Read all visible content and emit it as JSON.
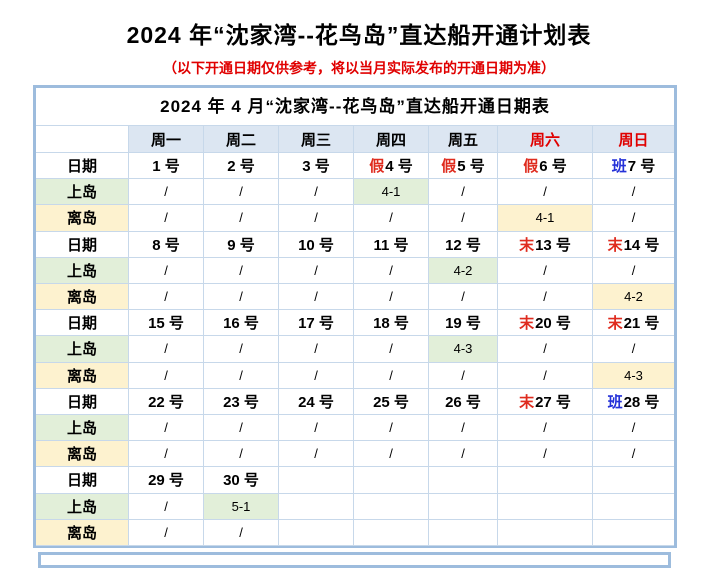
{
  "page": {
    "title": "2024 年“沈家湾--花鸟岛”直达船开通计划表",
    "subtitle": "（以下开通日期仅供参考，将以当月实际发布的开通日期为准）"
  },
  "colors": {
    "border_blue": "#9dbcdd",
    "grid_line": "#c7d8ea",
    "header_row_bg": "#dce6f2",
    "label_green": "#e2efd9",
    "label_yellow": "#fdf2cf",
    "weekend_red": "#e00000",
    "marker_red": "#df2b1e",
    "marker_blue": "#2431d8"
  },
  "table": {
    "title": "2024 年 4 月“沈家湾--花鸟岛”直达船开通日期表",
    "corner_label": "",
    "weekday_headers": [
      {
        "label": "周一",
        "red": false
      },
      {
        "label": "周二",
        "red": false
      },
      {
        "label": "周三",
        "red": false
      },
      {
        "label": "周四",
        "red": false
      },
      {
        "label": "周五",
        "red": false
      },
      {
        "label": "周六",
        "red": true
      },
      {
        "label": "周日",
        "red": true
      }
    ],
    "row_labels": {
      "date": "日期",
      "to_island": "上岛",
      "leave_island": "离岛"
    },
    "weeks": [
      {
        "dates": [
          {
            "prefix": "",
            "prefix_color": "",
            "text": "1 号"
          },
          {
            "prefix": "",
            "prefix_color": "",
            "text": "2 号"
          },
          {
            "prefix": "",
            "prefix_color": "",
            "text": "3 号"
          },
          {
            "prefix": "假",
            "prefix_color": "red",
            "text": "4 号"
          },
          {
            "prefix": "假",
            "prefix_color": "red",
            "text": "5 号"
          },
          {
            "prefix": "假",
            "prefix_color": "red",
            "text": "6 号"
          },
          {
            "prefix": "班",
            "prefix_color": "blue",
            "text": "7 号"
          }
        ],
        "to_island": [
          {
            "v": "/",
            "bg": ""
          },
          {
            "v": "/",
            "bg": ""
          },
          {
            "v": "/",
            "bg": ""
          },
          {
            "v": "4-1",
            "bg": "green"
          },
          {
            "v": "/",
            "bg": ""
          },
          {
            "v": "/",
            "bg": ""
          },
          {
            "v": "/",
            "bg": ""
          }
        ],
        "leave_island": [
          {
            "v": "/",
            "bg": ""
          },
          {
            "v": "/",
            "bg": ""
          },
          {
            "v": "/",
            "bg": ""
          },
          {
            "v": "/",
            "bg": ""
          },
          {
            "v": "/",
            "bg": ""
          },
          {
            "v": "4-1",
            "bg": "yellow"
          },
          {
            "v": "/",
            "bg": ""
          }
        ]
      },
      {
        "dates": [
          {
            "prefix": "",
            "prefix_color": "",
            "text": "8 号"
          },
          {
            "prefix": "",
            "prefix_color": "",
            "text": "9 号"
          },
          {
            "prefix": "",
            "prefix_color": "",
            "text": "10 号"
          },
          {
            "prefix": "",
            "prefix_color": "",
            "text": "11 号"
          },
          {
            "prefix": "",
            "prefix_color": "",
            "text": "12 号"
          },
          {
            "prefix": "末",
            "prefix_color": "red",
            "text": "13 号"
          },
          {
            "prefix": "末",
            "prefix_color": "red",
            "text": "14 号"
          }
        ],
        "to_island": [
          {
            "v": "/",
            "bg": ""
          },
          {
            "v": "/",
            "bg": ""
          },
          {
            "v": "/",
            "bg": ""
          },
          {
            "v": "/",
            "bg": ""
          },
          {
            "v": "4-2",
            "bg": "green"
          },
          {
            "v": "/",
            "bg": ""
          },
          {
            "v": "/",
            "bg": ""
          }
        ],
        "leave_island": [
          {
            "v": "/",
            "bg": ""
          },
          {
            "v": "/",
            "bg": ""
          },
          {
            "v": "/",
            "bg": ""
          },
          {
            "v": "/",
            "bg": ""
          },
          {
            "v": "/",
            "bg": ""
          },
          {
            "v": "/",
            "bg": ""
          },
          {
            "v": "4-2",
            "bg": "yellow"
          }
        ]
      },
      {
        "dates": [
          {
            "prefix": "",
            "prefix_color": "",
            "text": "15 号"
          },
          {
            "prefix": "",
            "prefix_color": "",
            "text": "16 号"
          },
          {
            "prefix": "",
            "prefix_color": "",
            "text": "17 号"
          },
          {
            "prefix": "",
            "prefix_color": "",
            "text": "18 号"
          },
          {
            "prefix": "",
            "prefix_color": "",
            "text": "19 号"
          },
          {
            "prefix": "末",
            "prefix_color": "red",
            "text": "20 号"
          },
          {
            "prefix": "末",
            "prefix_color": "red",
            "text": "21 号"
          }
        ],
        "to_island": [
          {
            "v": "/",
            "bg": ""
          },
          {
            "v": "/",
            "bg": ""
          },
          {
            "v": "/",
            "bg": ""
          },
          {
            "v": "/",
            "bg": ""
          },
          {
            "v": "4-3",
            "bg": "green"
          },
          {
            "v": "/",
            "bg": ""
          },
          {
            "v": "/",
            "bg": ""
          }
        ],
        "leave_island": [
          {
            "v": "/",
            "bg": ""
          },
          {
            "v": "/",
            "bg": ""
          },
          {
            "v": "/",
            "bg": ""
          },
          {
            "v": "/",
            "bg": ""
          },
          {
            "v": "/",
            "bg": ""
          },
          {
            "v": "/",
            "bg": ""
          },
          {
            "v": "4-3",
            "bg": "yellow"
          }
        ]
      },
      {
        "dates": [
          {
            "prefix": "",
            "prefix_color": "",
            "text": "22 号"
          },
          {
            "prefix": "",
            "prefix_color": "",
            "text": "23 号"
          },
          {
            "prefix": "",
            "prefix_color": "",
            "text": "24 号"
          },
          {
            "prefix": "",
            "prefix_color": "",
            "text": "25 号"
          },
          {
            "prefix": "",
            "prefix_color": "",
            "text": "26 号"
          },
          {
            "prefix": "末",
            "prefix_color": "red",
            "text": "27 号"
          },
          {
            "prefix": "班",
            "prefix_color": "blue",
            "text": "28 号"
          }
        ],
        "to_island": [
          {
            "v": "/",
            "bg": ""
          },
          {
            "v": "/",
            "bg": ""
          },
          {
            "v": "/",
            "bg": ""
          },
          {
            "v": "/",
            "bg": ""
          },
          {
            "v": "/",
            "bg": ""
          },
          {
            "v": "/",
            "bg": ""
          },
          {
            "v": "/",
            "bg": ""
          }
        ],
        "leave_island": [
          {
            "v": "/",
            "bg": ""
          },
          {
            "v": "/",
            "bg": ""
          },
          {
            "v": "/",
            "bg": ""
          },
          {
            "v": "/",
            "bg": ""
          },
          {
            "v": "/",
            "bg": ""
          },
          {
            "v": "/",
            "bg": ""
          },
          {
            "v": "/",
            "bg": ""
          }
        ]
      },
      {
        "dates": [
          {
            "prefix": "",
            "prefix_color": "",
            "text": "29 号"
          },
          {
            "prefix": "",
            "prefix_color": "",
            "text": "30 号"
          },
          {
            "prefix": "",
            "prefix_color": "",
            "text": ""
          },
          {
            "prefix": "",
            "prefix_color": "",
            "text": ""
          },
          {
            "prefix": "",
            "prefix_color": "",
            "text": ""
          },
          {
            "prefix": "",
            "prefix_color": "",
            "text": ""
          },
          {
            "prefix": "",
            "prefix_color": "",
            "text": ""
          }
        ],
        "to_island": [
          {
            "v": "/",
            "bg": ""
          },
          {
            "v": "5-1",
            "bg": "green"
          },
          {
            "v": "",
            "bg": ""
          },
          {
            "v": "",
            "bg": ""
          },
          {
            "v": "",
            "bg": ""
          },
          {
            "v": "",
            "bg": ""
          },
          {
            "v": "",
            "bg": ""
          }
        ],
        "leave_island": [
          {
            "v": "/",
            "bg": ""
          },
          {
            "v": "/",
            "bg": ""
          },
          {
            "v": "",
            "bg": ""
          },
          {
            "v": "",
            "bg": ""
          },
          {
            "v": "",
            "bg": ""
          },
          {
            "v": "",
            "bg": ""
          },
          {
            "v": "",
            "bg": ""
          }
        ]
      }
    ]
  }
}
